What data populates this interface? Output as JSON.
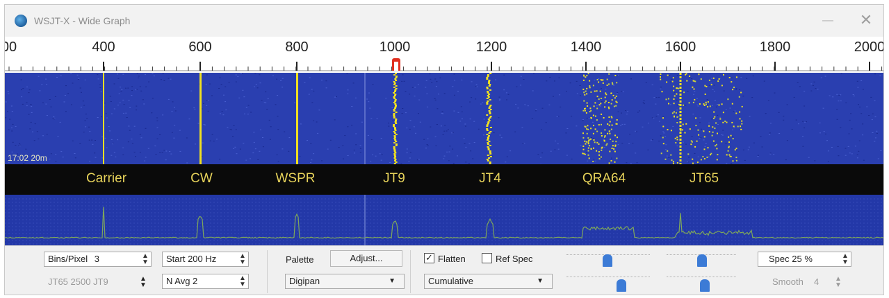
{
  "window": {
    "title": "WSJT-X - Wide Graph",
    "minimize_icon": "minimize-icon",
    "close_icon": "close-icon",
    "close_glyph": "✕",
    "minimize_glyph": "—"
  },
  "scale": {
    "labels": [
      "00",
      "400",
      "600",
      "800",
      "1000",
      "1200",
      "1400",
      "1600",
      "1800",
      "2000"
    ],
    "marker_color": "#e03020"
  },
  "waterfall": {
    "timestamp": "17:02   20m",
    "background": "#2a3fb0",
    "trace_color": "#f0e020"
  },
  "modes": [
    "Carrier",
    "CW",
    "WSPR",
    "JT9",
    "JT4",
    "QRA64",
    "JT65"
  ],
  "controls": {
    "bins_per_pixel": {
      "label": "Bins/Pixel",
      "value": "3"
    },
    "start_freq": {
      "value": "Start 200 Hz"
    },
    "palette_label": "Palette",
    "adjust_button": "Adjust...",
    "flatten": {
      "label": "Flatten",
      "checked": true
    },
    "ref_spec": {
      "label": "Ref Spec",
      "checked": false
    },
    "spec": {
      "value": "Spec 25 %"
    },
    "jt65_jt9": {
      "text": "JT65  2500  JT9"
    },
    "n_avg": {
      "value": "N Avg 2"
    },
    "palette_select": {
      "value": "Digipan"
    },
    "spectrum_select": {
      "value": "Cumulative"
    },
    "smooth": {
      "label": "Smooth",
      "value": "4"
    }
  },
  "colors": {
    "accent_blue": "#3c7bd6",
    "label_yellow": "#e6d25a",
    "trace_green": "#7fa85a"
  }
}
